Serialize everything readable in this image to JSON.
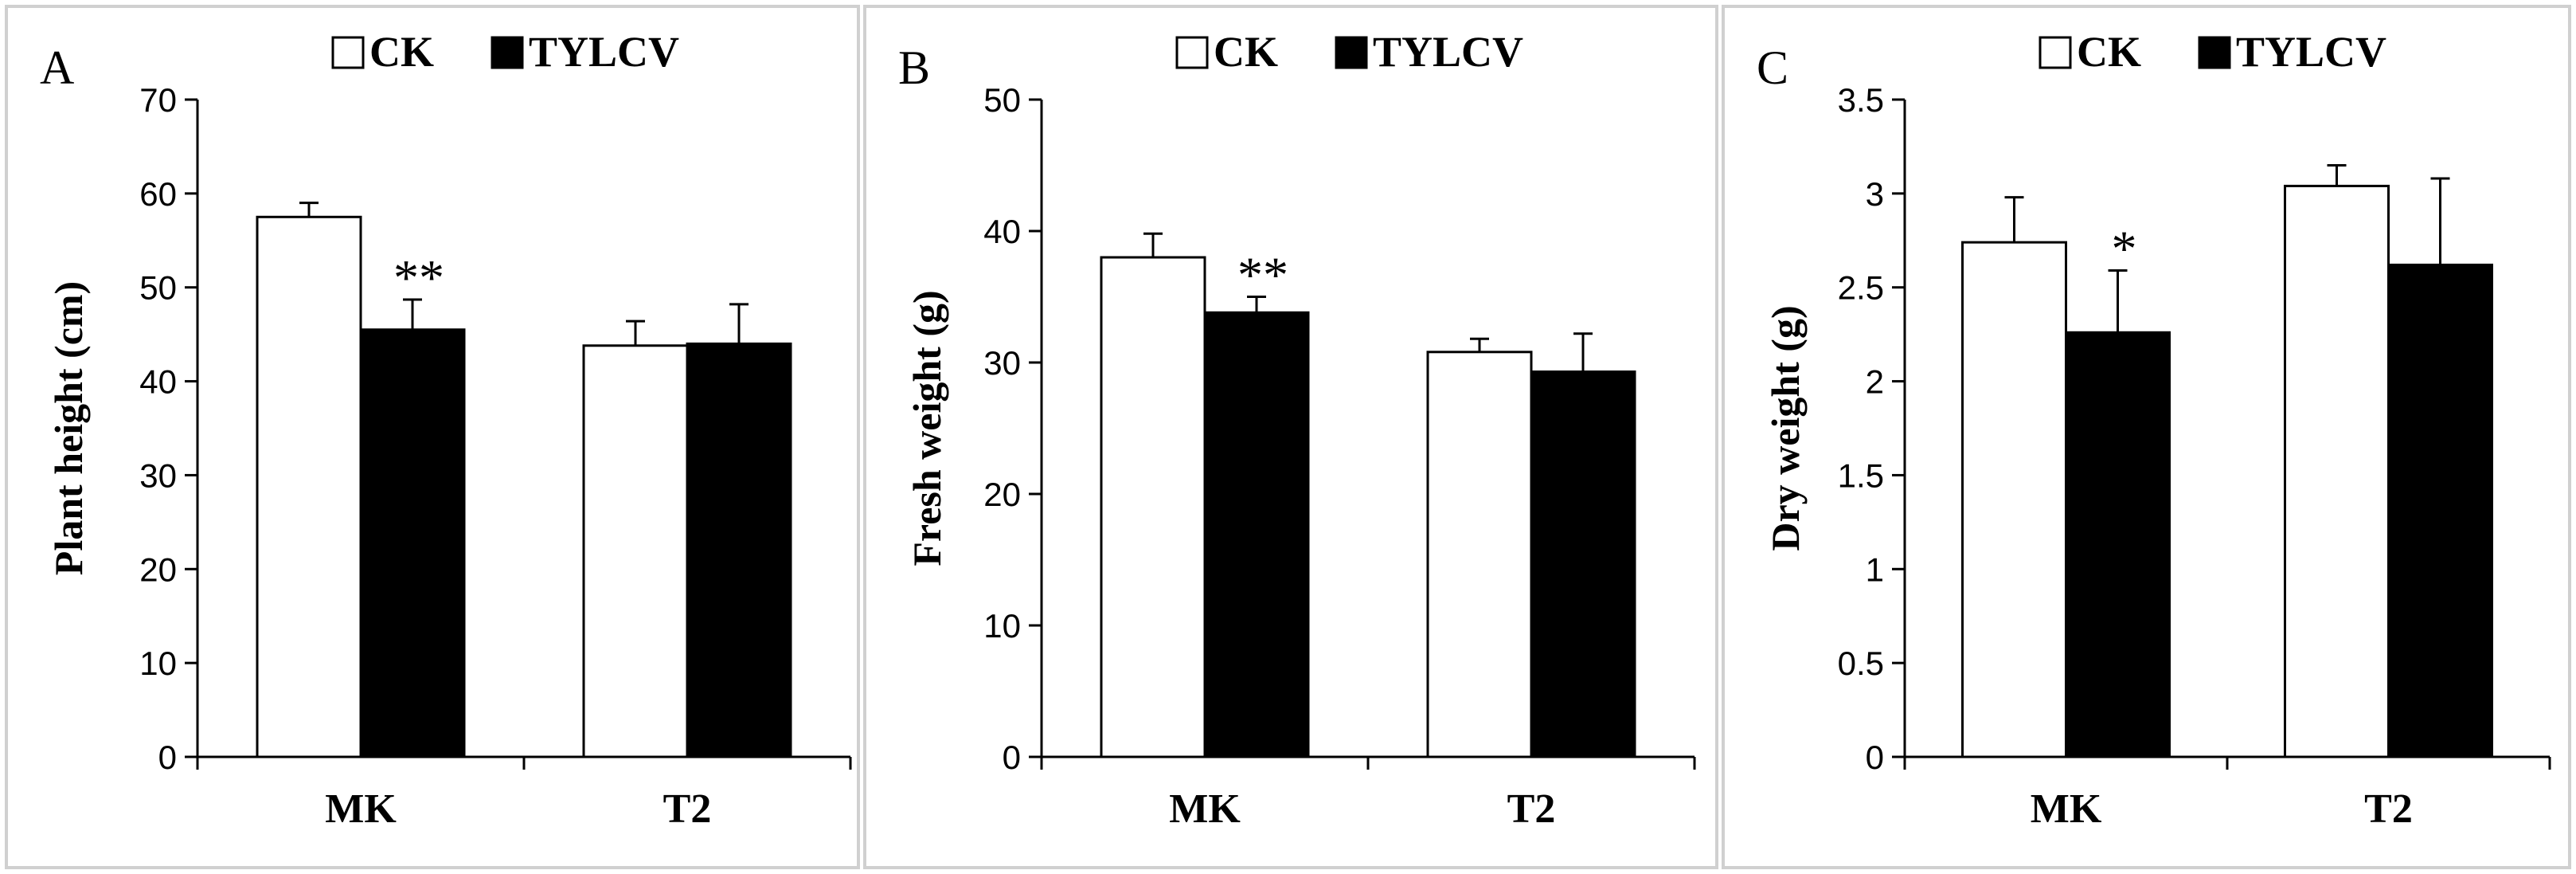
{
  "colors": {
    "ck_fill": "#ffffff",
    "tylcv_fill": "#000000",
    "axis": "#000000",
    "panel_border": "#d0d0d0"
  },
  "chart_data": [
    {
      "type": "bar",
      "panel_letter": "A",
      "ylabel": "Plant height (cm)",
      "xlabel": "",
      "categories": [
        "MK",
        "T2"
      ],
      "ylim": [
        0,
        70
      ],
      "yticks": [
        0,
        10,
        20,
        30,
        40,
        50,
        60,
        70
      ],
      "ytick_labels": [
        "0",
        "10",
        "20",
        "30",
        "40",
        "50",
        "60",
        "70"
      ],
      "legend": {
        "placement": "top-center",
        "entries": [
          "CK",
          "TYLCV"
        ]
      },
      "series": [
        {
          "name": "CK",
          "color": "#ffffff",
          "values": [
            57.5,
            43.8
          ],
          "errors": [
            1.5,
            2.6
          ]
        },
        {
          "name": "TYLCV",
          "color": "#000000",
          "values": [
            45.5,
            44.0
          ],
          "errors": [
            3.2,
            4.2
          ]
        }
      ],
      "annotations": [
        {
          "series": 1,
          "category": 0,
          "text": "**"
        }
      ]
    },
    {
      "type": "bar",
      "panel_letter": "B",
      "ylabel": "Fresh weight (g)",
      "xlabel": "",
      "categories": [
        "MK",
        "T2"
      ],
      "ylim": [
        0,
        50
      ],
      "yticks": [
        0,
        10,
        20,
        30,
        40,
        50
      ],
      "ytick_labels": [
        "0",
        "10",
        "20",
        "30",
        "40",
        "50"
      ],
      "legend": {
        "placement": "top-center",
        "entries": [
          "CK",
          "TYLCV"
        ]
      },
      "series": [
        {
          "name": "CK",
          "color": "#ffffff",
          "values": [
            38.0,
            30.8
          ],
          "errors": [
            1.8,
            1.0
          ]
        },
        {
          "name": "TYLCV",
          "color": "#000000",
          "values": [
            33.8,
            29.3
          ],
          "errors": [
            1.2,
            2.9
          ]
        }
      ],
      "annotations": [
        {
          "series": 1,
          "category": 0,
          "text": "**"
        }
      ]
    },
    {
      "type": "bar",
      "panel_letter": "C",
      "ylabel": "Dry weight (g)",
      "xlabel": "",
      "categories": [
        "MK",
        "T2"
      ],
      "ylim": [
        0,
        3.5
      ],
      "yticks": [
        0,
        0.5,
        1,
        1.5,
        2,
        2.5,
        3,
        3.5
      ],
      "ytick_labels": [
        "0",
        "0.5",
        "1",
        "1.5",
        "2",
        "2.5",
        "3",
        "3.5"
      ],
      "legend": {
        "placement": "top-center",
        "entries": [
          "CK",
          "TYLCV"
        ]
      },
      "series": [
        {
          "name": "CK",
          "color": "#ffffff",
          "values": [
            2.74,
            3.04
          ],
          "errors": [
            0.24,
            0.11
          ]
        },
        {
          "name": "TYLCV",
          "color": "#000000",
          "values": [
            2.26,
            2.62
          ],
          "errors": [
            0.33,
            0.46
          ]
        }
      ],
      "annotations": [
        {
          "series": 1,
          "category": 0,
          "text": "*"
        }
      ]
    }
  ]
}
